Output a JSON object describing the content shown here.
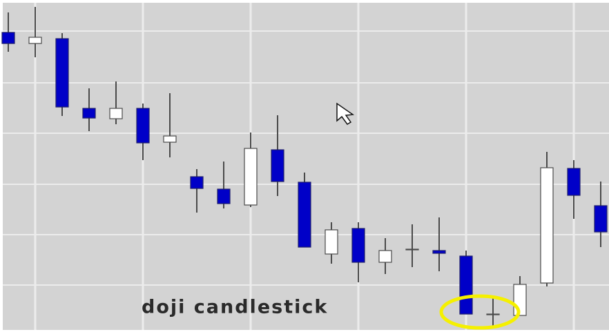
{
  "chart_data": {
    "type": "candlestick",
    "annotation": "doji candlestick",
    "categories": [
      null,
      null,
      null,
      null,
      null,
      null,
      null,
      null,
      null,
      null,
      null,
      null,
      null,
      null,
      null,
      null,
      null,
      null,
      null,
      null,
      null,
      null,
      null
    ],
    "series": [
      {
        "name": null,
        "color": "#0000c8",
        "up_color": "#ffffff",
        "open": [
          434,
          418,
          425,
          324,
          309,
          324,
          275,
          225,
          207,
          184,
          264,
          217,
          113,
          150,
          101,
          119,
          118,
          110,
          26,
          24,
          71,
          237,
          183
        ],
        "high": [
          463,
          471,
          433,
          353,
          363,
          331,
          346,
          236,
          247,
          289,
          314,
          231,
          159,
          159,
          136,
          156,
          166,
          118,
          49,
          81,
          261,
          249,
          218
        ],
        "low": [
          406,
          398,
          313,
          291,
          301,
          249,
          253,
          173,
          179,
          181,
          197,
          123,
          99,
          72,
          84,
          94,
          88,
          26,
          9,
          24,
          66,
          164,
          123
        ],
        "close": [
          418,
          427,
          326,
          310,
          324,
          274,
          284,
          208,
          186,
          266,
          218,
          123,
          148,
          101,
          118,
          120,
          114,
          26,
          26,
          69,
          238,
          198,
          145
        ]
      }
    ],
    "ylim": [
      0,
      481
    ],
    "yticks": [
      68,
      141,
      214,
      288,
      361,
      436
    ],
    "grid": true
  }
}
